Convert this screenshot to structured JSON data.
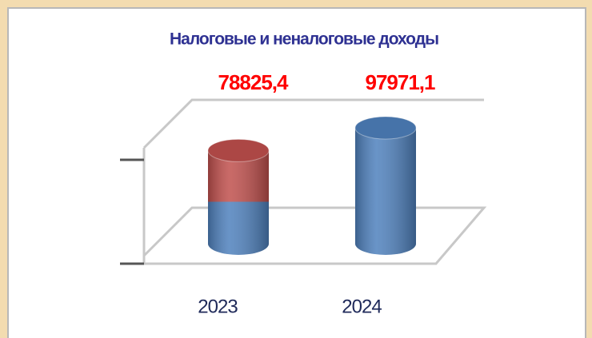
{
  "chart_data": {
    "type": "bar",
    "title": "Налоговые и неналоговые доходы",
    "categories": [
      "2023",
      "2024"
    ],
    "values": [
      78825.4,
      97971.1
    ],
    "value_labels": [
      "78825,4",
      "97971,1"
    ],
    "colors": [
      "#c0504d",
      "#4f81bd"
    ],
    "ylim": [
      0,
      100000
    ]
  }
}
